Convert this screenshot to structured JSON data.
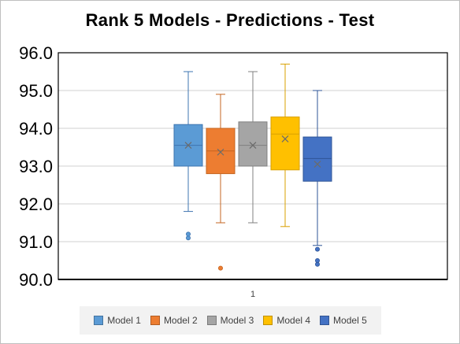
{
  "chart_data": {
    "type": "box",
    "title": "Rank 5 Models - Predictions - Test",
    "category": "1",
    "ylim": [
      90.0,
      96.0
    ],
    "yticks": [
      "90.0",
      "91.0",
      "92.0",
      "93.0",
      "94.0",
      "95.0",
      "96.0"
    ],
    "grid": true,
    "legend_position": "bottom",
    "series": [
      {
        "name": "Model 1",
        "color": "#5B9BD5",
        "whisker_color": "#3E74B0",
        "min": 91.8,
        "q1": 93.0,
        "median": 93.55,
        "q3": 94.1,
        "max": 95.5,
        "mean": 93.55,
        "outliers": [
          91.1,
          91.2
        ]
      },
      {
        "name": "Model 2",
        "color": "#ED7D31",
        "whisker_color": "#C56520",
        "min": 91.5,
        "q1": 92.8,
        "median": 93.4,
        "q3": 94.0,
        "max": 94.9,
        "mean": 93.37,
        "outliers": [
          90.3
        ]
      },
      {
        "name": "Model 3",
        "color": "#A5A5A5",
        "whisker_color": "#808080",
        "min": 91.5,
        "q1": 93.0,
        "median": 93.55,
        "q3": 94.17,
        "max": 95.5,
        "mean": 93.55,
        "outliers": []
      },
      {
        "name": "Model 4",
        "color": "#FFC000",
        "whisker_color": "#D9A000",
        "min": 91.4,
        "q1": 92.9,
        "median": 93.85,
        "q3": 94.3,
        "max": 95.7,
        "mean": 93.72,
        "outliers": []
      },
      {
        "name": "Model 5",
        "color": "#4472C4",
        "whisker_color": "#2F5597",
        "min": 90.9,
        "q1": 92.6,
        "median": 93.2,
        "q3": 93.77,
        "max": 95.0,
        "mean": 93.05,
        "outliers": [
          90.4,
          90.5,
          90.8
        ]
      }
    ]
  }
}
